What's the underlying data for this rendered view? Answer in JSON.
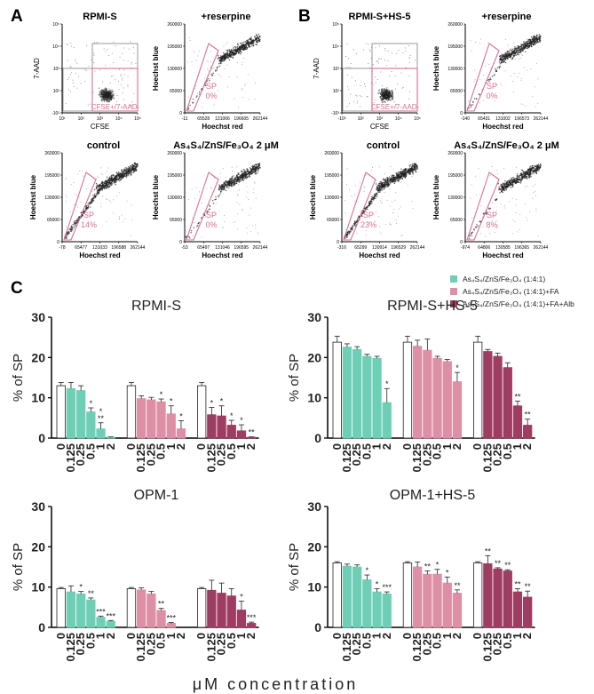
{
  "colors": {
    "green": "#6fcfb6",
    "pink": "#dd8fa6",
    "maroon": "#9e3d62",
    "white": "#ffffff",
    "gate": "#d9708f",
    "dot": "#222222"
  },
  "panel_labels": {
    "a": "A",
    "b": "B",
    "c": "C"
  },
  "flow": {
    "a": {
      "gating": {
        "title": "RPMI-S",
        "ylabel": "7-AAD",
        "xlabel": "CFSE",
        "gate_label": "CFSE+/7-AAD-",
        "xticks": [
          "10¹",
          "10²",
          "10³",
          "10⁴",
          "10⁵"
        ],
        "yticks": [
          "10⁵",
          "10⁴",
          "10³",
          "10²",
          "-10³"
        ]
      },
      "plots": [
        {
          "title": "+reserpine",
          "ylabel": "Hoechst blue",
          "xlabel": "Hoechst red",
          "sp_label": "SP",
          "sp_value": "0%",
          "yticks": [
            "260000",
            "195000",
            "130000",
            "65000",
            "0"
          ],
          "xticks": [
            "-11",
            "65528",
            "131066",
            "196605",
            "262144"
          ]
        },
        {
          "title": "control",
          "ylabel": "Hoechst blue",
          "xlabel": "Hoechst red",
          "sp_label": "SP",
          "sp_value": "14%",
          "yticks": [
            "260000",
            "195000",
            "130000",
            "65000",
            "0"
          ],
          "xticks": [
            "-78",
            "65477",
            "131033",
            "196588",
            "262144"
          ]
        },
        {
          "title": "As₄S₄/ZnS/Fe₃O₄ 2 μM",
          "ylabel": "Hoechst blue",
          "xlabel": "Hoechst red",
          "sp_label": "SP",
          "sp_value": "0%",
          "yticks": [
            "260000",
            "195000",
            "130000",
            "65000",
            "0"
          ],
          "xticks": [
            "-53",
            "65497",
            "131046",
            "196595",
            "262144"
          ]
        }
      ]
    },
    "b": {
      "gating": {
        "title": "RPMI-S+HS-5",
        "ylabel": "7-AAD",
        "xlabel": "CFSE",
        "gate_label": "CFSE+/7-AAD-",
        "xticks": [
          "-10³",
          "10²",
          "10³",
          "10⁴",
          "10⁵"
        ],
        "yticks": [
          "10⁵",
          "10⁴",
          "10³",
          "10²",
          "-10³"
        ]
      },
      "plots": [
        {
          "title": "+reserpine",
          "ylabel": "Hoechst blue",
          "xlabel": "Hoechst red",
          "sp_label": "SP",
          "sp_value": "0%",
          "yticks": [
            "260000",
            "195000",
            "130000",
            "65000",
            "0"
          ],
          "xticks": [
            "-140",
            "65431",
            "131002",
            "196573",
            "262144"
          ]
        },
        {
          "title": "control",
          "ylabel": "Hoechst blue",
          "xlabel": "Hoechst red",
          "sp_label": "SP",
          "sp_value": "23%",
          "yticks": [
            "260000",
            "195000",
            "130000",
            "65000",
            "0"
          ],
          "xticks": [
            "-316",
            "65299",
            "130914",
            "196529",
            "262144"
          ]
        },
        {
          "title": "As₄S₄/ZnS/Fe₃O₄ 2 μM",
          "ylabel": "Hoechst blue",
          "xlabel": "Hoechst red",
          "sp_label": "SP",
          "sp_value": "8%",
          "yticks": [
            "260000",
            "195000",
            "130000",
            "65000",
            "0"
          ],
          "xticks": [
            "-974",
            "64806",
            "130585",
            "196365",
            "262144"
          ]
        }
      ]
    }
  },
  "legend": [
    {
      "label": "As₄S₄/ZnS/Fe₃O₄ (1:4:1)",
      "color": "#6fcfb6"
    },
    {
      "label": "As₄S₄/ZnS/Fe₃O₄ (1:4:1)+FA",
      "color": "#dd8fa6"
    },
    {
      "label": "As₄S₄/ZnS/Fe₃O₄ (1:4:1)+FA+Alb",
      "color": "#9e3d62"
    }
  ],
  "x_title": "μM concentration",
  "chart_data": [
    {
      "type": "bar",
      "title": "RPMI-S",
      "ylabel": "% of SP",
      "ylim": [
        0,
        30
      ],
      "yticks": [
        0,
        10,
        20,
        30
      ],
      "categories": [
        "0",
        "0.125",
        "0.25",
        "0.5",
        "1",
        "2"
      ],
      "series": [
        {
          "name": "As₄S₄/ZnS/Fe₃O₄ (1:4:1)",
          "values": [
            13,
            12.3,
            11.8,
            6.5,
            2.3,
            0.2
          ],
          "errors": [
            0.8,
            1.5,
            1.2,
            1.0,
            1.5,
            0.1
          ],
          "sig": [
            "",
            "",
            "",
            "*",
            "*\n**",
            ""
          ]
        },
        {
          "name": "As₄S₄/ZnS/Fe₃O₄ (1:4:1)+FA",
          "values": [
            13,
            9.8,
            9.5,
            9.0,
            6.0,
            2.3
          ],
          "errors": [
            0.8,
            0.7,
            0.6,
            0.7,
            2.0,
            2.0
          ],
          "sig": [
            "",
            "",
            "",
            "*",
            "*",
            "*"
          ]
        },
        {
          "name": "As₄S₄/ZnS/Fe₃O₄ (1:4:1)+FA+Alb",
          "values": [
            13,
            5.8,
            5.5,
            3.2,
            1.8,
            0.2
          ],
          "errors": [
            0.8,
            1.8,
            2.5,
            1.2,
            1.5,
            0.1
          ],
          "sig": [
            "",
            "*",
            "*",
            "*",
            "*",
            "**"
          ]
        }
      ]
    },
    {
      "type": "bar",
      "title": "RPMI-S+HS-5",
      "ylabel": "% of SP",
      "ylim": [
        0,
        30
      ],
      "yticks": [
        0,
        10,
        20,
        30
      ],
      "categories": [
        "0",
        "0.125",
        "0.25",
        "0.5",
        "1",
        "2"
      ],
      "series": [
        {
          "name": "As₄S₄/ZnS/Fe₃O₄ (1:4:1)",
          "values": [
            23.8,
            22.6,
            22.0,
            20.3,
            19.8,
            8.8
          ],
          "errors": [
            1.5,
            0.8,
            0.7,
            0.5,
            0.5,
            3.5
          ],
          "sig": [
            "",
            "",
            "",
            "",
            "",
            "*"
          ]
        },
        {
          "name": "As₄S₄/ZnS/Fe₃O₄ (1:4:1)+FA",
          "values": [
            23.8,
            22.8,
            21.8,
            19.8,
            19.0,
            14.0
          ],
          "errors": [
            1.5,
            1.5,
            2.8,
            0.5,
            0.5,
            2.3
          ],
          "sig": [
            "",
            "",
            "",
            "",
            "",
            "*"
          ]
        },
        {
          "name": "As₄S₄/ZnS/Fe₃O₄ (1:4:1)+FA+Alb",
          "values": [
            23.8,
            21.5,
            20.3,
            17.5,
            8.0,
            3.2
          ],
          "errors": [
            1.5,
            0.5,
            0.8,
            1.2,
            1.2,
            1.5
          ],
          "sig": [
            "",
            "",
            "",
            "",
            "**",
            "**"
          ]
        }
      ]
    },
    {
      "type": "bar",
      "title": "OPM-1",
      "ylabel": "% of SP",
      "ylim": [
        0,
        30
      ],
      "yticks": [
        0,
        10,
        20,
        30
      ],
      "categories": [
        "0",
        "0.125",
        "0.25",
        "0.5",
        "1",
        "2"
      ],
      "series": [
        {
          "name": "As₄S₄/ZnS/Fe₃O₄ (1:4:1)",
          "values": [
            9.6,
            8.8,
            8.3,
            6.8,
            2.5,
            1.5
          ],
          "errors": [
            0.3,
            1.5,
            0.6,
            0.5,
            0.3,
            0.2
          ],
          "sig": [
            "",
            "",
            "*",
            "**",
            "***",
            "***"
          ]
        },
        {
          "name": "As₄S₄/ZnS/Fe₃O₄ (1:4:1)+FA",
          "values": [
            9.6,
            9.3,
            8.3,
            4.2,
            1.0,
            0.0
          ],
          "errors": [
            0.3,
            0.5,
            0.6,
            0.5,
            0.2,
            0.0
          ],
          "sig": [
            "",
            "",
            "",
            "**",
            "***",
            ""
          ]
        },
        {
          "name": "As₄S₄/ZnS/Fe₃O₄ (1:4:1)+FA+Alb",
          "values": [
            9.6,
            9.2,
            8.5,
            7.8,
            4.3,
            1.0
          ],
          "errors": [
            0.3,
            2.5,
            2.5,
            1.8,
            2.2,
            0.3
          ],
          "sig": [
            "",
            "",
            "",
            "",
            "*",
            "***"
          ]
        }
      ]
    },
    {
      "type": "bar",
      "title": "OPM-1+HS-5",
      "ylabel": "% of SP",
      "ylim": [
        0,
        30
      ],
      "yticks": [
        0,
        10,
        20,
        30
      ],
      "categories": [
        "0",
        "0.125",
        "0.25",
        "0.5",
        "1",
        "2"
      ],
      "series": [
        {
          "name": "As₄S₄/ZnS/Fe₃O₄ (1:4:1)",
          "values": [
            16.0,
            15.2,
            15.0,
            11.8,
            8.8,
            8.3
          ],
          "errors": [
            0.3,
            0.5,
            0.5,
            1.2,
            0.8,
            0.5
          ],
          "sig": [
            "",
            "",
            "",
            "*",
            "*",
            "***"
          ]
        },
        {
          "name": "As₄S₄/ZnS/Fe₃O₄ (1:4:1)+FA",
          "values": [
            16.0,
            15.0,
            13.2,
            13.2,
            11.0,
            8.5
          ],
          "errors": [
            0.3,
            1.2,
            0.8,
            1.2,
            1.5,
            0.8
          ],
          "sig": [
            "",
            "",
            "**",
            "*",
            "*",
            "**"
          ]
        },
        {
          "name": "As₄S₄/ZnS/Fe₃O₄ (1:4:1)+FA+Alb",
          "values": [
            16.0,
            15.8,
            14.5,
            14.0,
            8.8,
            7.5
          ],
          "errors": [
            0.3,
            2.0,
            0.3,
            0.3,
            0.8,
            1.5
          ],
          "sig": [
            "",
            "**",
            "**",
            "**",
            "**",
            "**"
          ]
        }
      ]
    }
  ]
}
